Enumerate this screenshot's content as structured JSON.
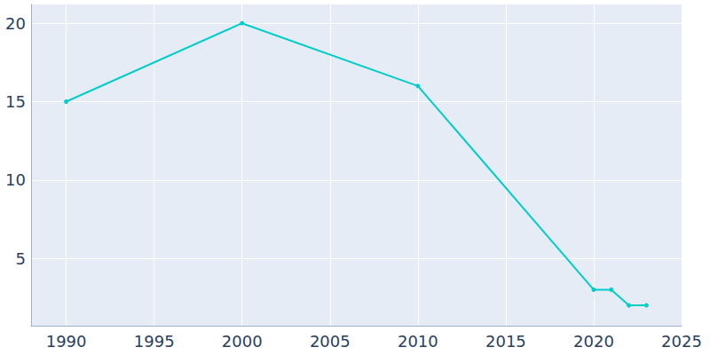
{
  "chart_data": {
    "type": "line",
    "x": [
      1990,
      2000,
      2010,
      2020,
      2021,
      2022,
      2023
    ],
    "values": [
      15,
      20,
      16,
      3,
      3,
      2,
      2
    ],
    "color": "#00cccc",
    "marker": "circle",
    "xlim": [
      1988,
      2025
    ],
    "xticks": [
      1990,
      1995,
      2000,
      2005,
      2010,
      2015,
      2020,
      2025
    ],
    "ylim": [
      0.7,
      21.2
    ],
    "yticks": [
      5,
      10,
      15,
      20
    ],
    "grid": true
  }
}
